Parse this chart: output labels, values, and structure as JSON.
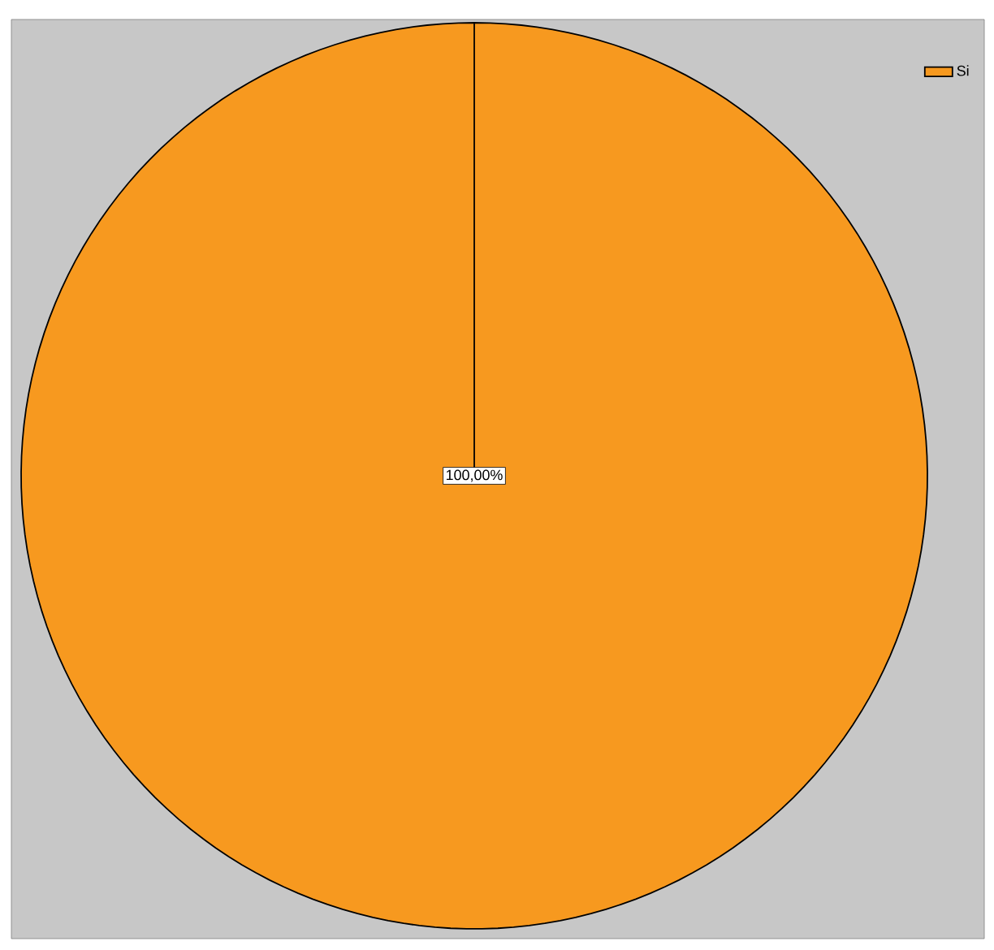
{
  "chart_data": {
    "type": "pie",
    "categories": [
      "Si"
    ],
    "values": [
      100
    ],
    "colors": [
      "#f7991f"
    ],
    "value_labels": [
      "100,00%"
    ],
    "legend": "top right"
  }
}
